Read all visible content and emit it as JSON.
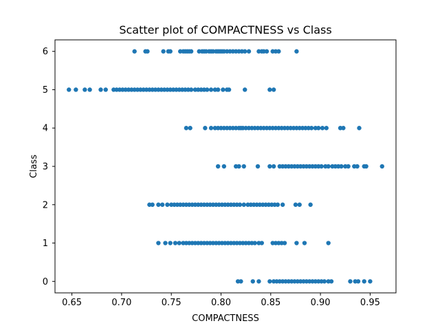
{
  "chart_data": {
    "type": "scatter",
    "title": "Scatter plot of COMPACTNESS vs Class",
    "xlabel": "COMPACTNESS",
    "ylabel": "Class",
    "xlim": [
      0.633,
      0.976
    ],
    "ylim": [
      -0.3,
      6.3
    ],
    "xticks": [
      0.65,
      0.7,
      0.75,
      0.8,
      0.85,
      0.9,
      0.95
    ],
    "xtick_labels": [
      "0.65",
      "0.70",
      "0.75",
      "0.80",
      "0.85",
      "0.90",
      "0.95"
    ],
    "yticks": [
      0,
      1,
      2,
      3,
      4,
      5,
      6
    ],
    "ytick_labels": [
      "0",
      "1",
      "2",
      "3",
      "4",
      "5",
      "6"
    ],
    "grid": false,
    "marker_color": "#1f77b4",
    "series": [
      {
        "y": 6,
        "x": [
          0.713,
          0.724,
          0.726,
          0.742,
          0.747,
          0.749,
          0.759,
          0.762,
          0.764,
          0.766,
          0.768,
          0.77,
          0.778,
          0.781,
          0.783,
          0.785,
          0.788,
          0.79,
          0.792,
          0.795,
          0.797,
          0.799,
          0.801,
          0.803,
          0.806,
          0.809,
          0.812,
          0.815,
          0.818,
          0.821,
          0.824,
          0.828,
          0.838,
          0.841,
          0.843,
          0.846,
          0.852,
          0.855,
          0.858,
          0.876
        ]
      },
      {
        "y": 5,
        "x": [
          0.647,
          0.654,
          0.663,
          0.668,
          0.679,
          0.684,
          0.692,
          0.695,
          0.698,
          0.701,
          0.704,
          0.707,
          0.71,
          0.713,
          0.716,
          0.719,
          0.722,
          0.725,
          0.728,
          0.731,
          0.734,
          0.737,
          0.74,
          0.743,
          0.746,
          0.749,
          0.752,
          0.755,
          0.758,
          0.761,
          0.764,
          0.767,
          0.77,
          0.774,
          0.777,
          0.78,
          0.783,
          0.786,
          0.79,
          0.794,
          0.797,
          0.802,
          0.806,
          0.808,
          0.824,
          0.849,
          0.853
        ]
      },
      {
        "y": 4,
        "x": [
          0.765,
          0.769,
          0.784,
          0.79,
          0.794,
          0.797,
          0.8,
          0.803,
          0.806,
          0.809,
          0.812,
          0.815,
          0.818,
          0.82,
          0.822,
          0.825,
          0.828,
          0.831,
          0.834,
          0.837,
          0.84,
          0.843,
          0.846,
          0.849,
          0.852,
          0.855,
          0.858,
          0.861,
          0.864,
          0.867,
          0.87,
          0.873,
          0.876,
          0.879,
          0.882,
          0.885,
          0.888,
          0.891,
          0.895,
          0.898,
          0.902,
          0.906,
          0.92,
          0.923,
          0.939
        ]
      },
      {
        "y": 3,
        "x": [
          0.797,
          0.803,
          0.815,
          0.818,
          0.823,
          0.837,
          0.849,
          0.853,
          0.859,
          0.862,
          0.865,
          0.868,
          0.871,
          0.874,
          0.877,
          0.88,
          0.883,
          0.886,
          0.889,
          0.892,
          0.895,
          0.898,
          0.901,
          0.905,
          0.908,
          0.912,
          0.915,
          0.918,
          0.921,
          0.925,
          0.928,
          0.934,
          0.937,
          0.944,
          0.946,
          0.962
        ]
      },
      {
        "y": 2,
        "x": [
          0.728,
          0.731,
          0.737,
          0.741,
          0.746,
          0.75,
          0.753,
          0.756,
          0.759,
          0.762,
          0.765,
          0.768,
          0.771,
          0.774,
          0.777,
          0.78,
          0.783,
          0.786,
          0.789,
          0.792,
          0.795,
          0.798,
          0.801,
          0.804,
          0.807,
          0.81,
          0.813,
          0.816,
          0.819,
          0.823,
          0.827,
          0.83,
          0.833,
          0.836,
          0.839,
          0.842,
          0.845,
          0.848,
          0.851,
          0.854,
          0.857,
          0.862,
          0.875,
          0.879,
          0.89
        ]
      },
      {
        "y": 1,
        "x": [
          0.737,
          0.744,
          0.749,
          0.754,
          0.758,
          0.762,
          0.765,
          0.768,
          0.771,
          0.774,
          0.777,
          0.78,
          0.783,
          0.786,
          0.789,
          0.792,
          0.795,
          0.798,
          0.801,
          0.804,
          0.807,
          0.81,
          0.813,
          0.816,
          0.819,
          0.822,
          0.825,
          0.828,
          0.831,
          0.834,
          0.838,
          0.841,
          0.852,
          0.855,
          0.858,
          0.861,
          0.864,
          0.876,
          0.884,
          0.908
        ]
      },
      {
        "y": 0,
        "x": [
          0.817,
          0.82,
          0.832,
          0.838,
          0.849,
          0.853,
          0.856,
          0.859,
          0.862,
          0.865,
          0.868,
          0.871,
          0.874,
          0.877,
          0.88,
          0.883,
          0.886,
          0.889,
          0.892,
          0.895,
          0.898,
          0.901,
          0.904,
          0.908,
          0.911,
          0.93,
          0.935,
          0.938,
          0.944,
          0.95
        ]
      }
    ]
  }
}
